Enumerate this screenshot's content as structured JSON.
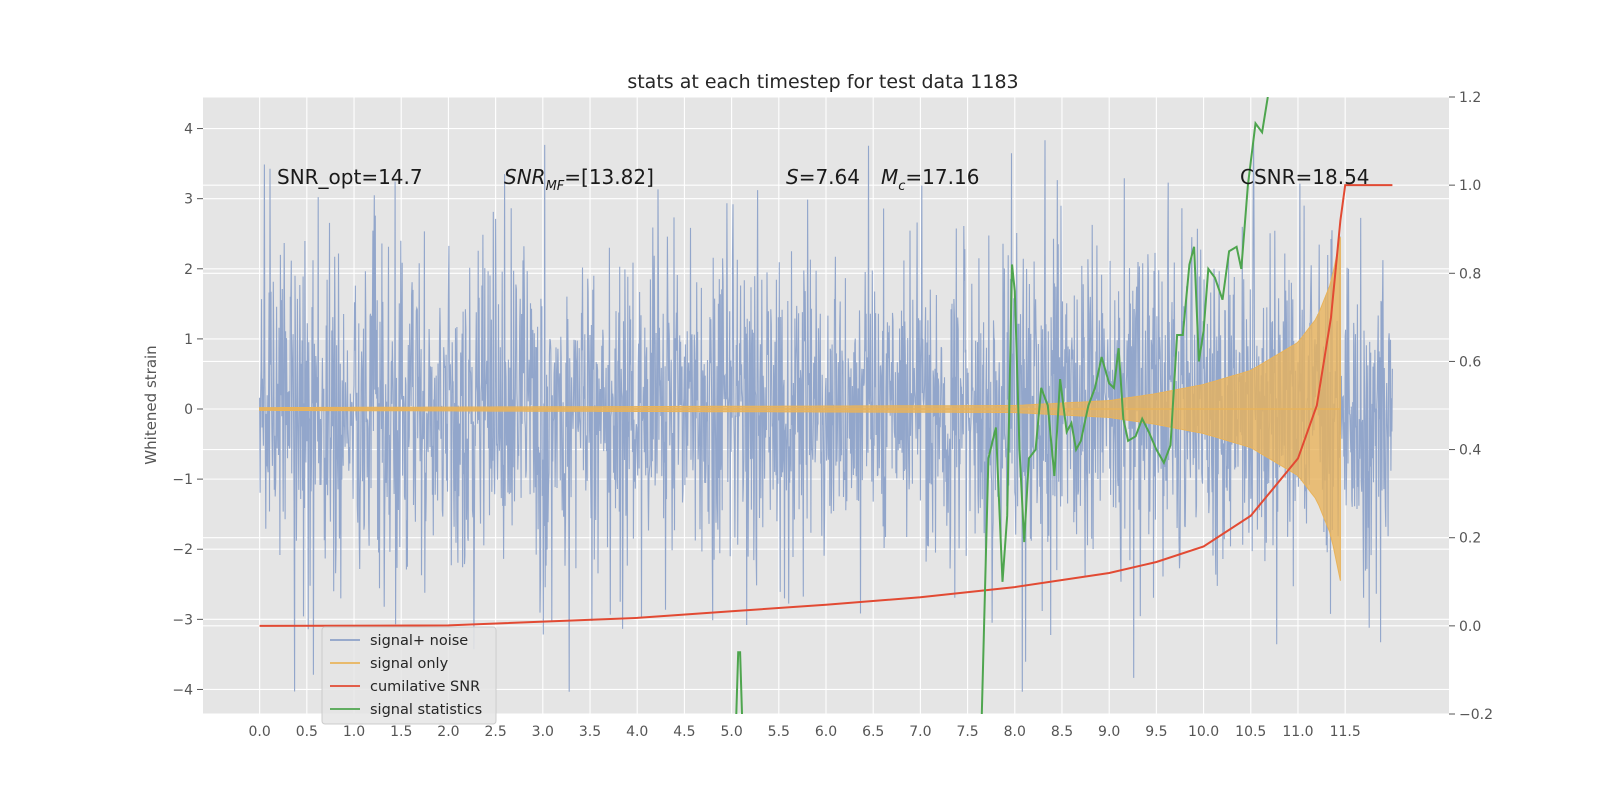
{
  "chart_data": {
    "type": "line",
    "title": "stats at each timestep for test data 1183",
    "ylabel": "Whitened strain",
    "y2label": "",
    "xlim": [
      -0.6,
      12.6
    ],
    "ylim": [
      -4.35,
      4.45
    ],
    "y2lim": [
      -0.2,
      1.2
    ],
    "x_ticks": [
      0.0,
      0.5,
      1.0,
      1.5,
      2.0,
      2.5,
      3.0,
      3.5,
      4.0,
      4.5,
      5.0,
      5.5,
      6.0,
      6.5,
      7.0,
      7.5,
      8.0,
      8.5,
      9.0,
      9.5,
      10.0,
      10.5,
      11.0,
      11.5
    ],
    "x_tick_labels": [
      "0.0",
      "0.5",
      "1.0",
      "1.5",
      "2.0",
      "2.5",
      "3.0",
      "3.5",
      "4.0",
      "4.5",
      "5.0",
      "5.5",
      "6.0",
      "6.5",
      "7.0",
      "7.5",
      "8.0",
      "8.5",
      "9.0",
      "9.5",
      "10.0",
      "10.5",
      "11.0",
      "11.5"
    ],
    "y_ticks": [
      4,
      3,
      2,
      1,
      0,
      -1,
      -2,
      -3,
      -4
    ],
    "y_tick_labels": [
      "4",
      "3",
      "2",
      "1",
      "0",
      "−1",
      "−2",
      "−3",
      "−4"
    ],
    "y2_ticks": [
      1.2,
      1.0,
      0.8,
      0.6,
      0.4,
      0.2,
      0.0,
      -0.2
    ],
    "y2_tick_labels": [
      "1.2",
      "1.0",
      "0.8",
      "0.6",
      "0.4",
      "0.2",
      "0.0",
      "−0.2"
    ],
    "grid": true,
    "annotations": {
      "snr_opt": "SNR_opt=14.7",
      "snr_mf": "SNR",
      "snr_mf_sub": "MF",
      "snr_mf_value": "=[13.82]",
      "s_label": "S",
      "s_value": "=7.64",
      "mc_label": "M",
      "mc_sub": "c",
      "mc_value": "=17.16",
      "csnr": "CSNR=18.54"
    },
    "legend": {
      "placement": "lower-left",
      "entries": [
        "signal+ noise",
        "signal only",
        "cumilative SNR",
        "signal statistics"
      ]
    },
    "colors": {
      "noise": "#8da2c9",
      "signal": "#e8b35b",
      "cumulative_snr": "#e24a33",
      "statistics": "#4ea54e",
      "background": "#e5e5e5",
      "grid": "#ffffff"
    },
    "series": [
      {
        "name": "signal+ noise",
        "x_start": 0.0,
        "x_end": 12.0,
        "typical_range": [
          -2.0,
          2.0
        ],
        "extremes": [
          -4.1,
          4.1
        ],
        "note_shape": "dense noise"
      },
      {
        "name": "signal only",
        "x_start": 0.0,
        "x_end": 11.45,
        "envelope": {
          "x": [
            0.0,
            8.0,
            9.0,
            9.5,
            10.0,
            10.5,
            11.0,
            11.2,
            11.35,
            11.45
          ],
          "amp": [
            0.02,
            0.05,
            0.12,
            0.22,
            0.35,
            0.55,
            0.95,
            1.3,
            1.8,
            2.45
          ]
        }
      },
      {
        "name": "cumilative SNR",
        "axis": "right",
        "x": [
          0.0,
          2.0,
          4.0,
          5.0,
          6.0,
          7.0,
          8.0,
          9.0,
          9.5,
          10.0,
          10.5,
          11.0,
          11.2,
          11.35,
          11.45,
          11.5,
          12.0
        ],
        "y": [
          0.0,
          0.001,
          0.018,
          0.033,
          0.048,
          0.065,
          0.088,
          0.12,
          0.145,
          0.18,
          0.25,
          0.38,
          0.5,
          0.7,
          0.92,
          1.0,
          1.0
        ]
      },
      {
        "name": "signal statistics",
        "axis": "right",
        "x": [
          5.05,
          5.07,
          5.09,
          5.11,
          7.65,
          7.72,
          7.8,
          7.87,
          7.92,
          7.97,
          8.0,
          8.05,
          8.1,
          8.15,
          8.22,
          8.28,
          8.35,
          8.42,
          8.48,
          8.55,
          8.6,
          8.65,
          8.7,
          8.78,
          8.85,
          8.92,
          9.0,
          9.05,
          9.1,
          9.15,
          9.2,
          9.28,
          9.35,
          9.42,
          9.5,
          9.58,
          9.65,
          9.72,
          9.78,
          9.85,
          9.9,
          9.95,
          10.0,
          10.05,
          10.12,
          10.2,
          10.27,
          10.35,
          10.4,
          10.47,
          10.55,
          10.62,
          10.68
        ],
        "y": [
          -0.2,
          -0.06,
          -0.06,
          -0.2,
          -0.2,
          0.38,
          0.45,
          0.1,
          0.25,
          0.82,
          0.76,
          0.4,
          0.19,
          0.38,
          0.4,
          0.54,
          0.5,
          0.34,
          0.56,
          0.44,
          0.46,
          0.4,
          0.42,
          0.5,
          0.54,
          0.61,
          0.55,
          0.54,
          0.63,
          0.47,
          0.42,
          0.43,
          0.47,
          0.44,
          0.4,
          0.37,
          0.41,
          0.66,
          0.66,
          0.82,
          0.86,
          0.6,
          0.67,
          0.81,
          0.79,
          0.74,
          0.85,
          0.86,
          0.81,
          1.0,
          1.14,
          1.12,
          1.2
        ]
      }
    ]
  }
}
